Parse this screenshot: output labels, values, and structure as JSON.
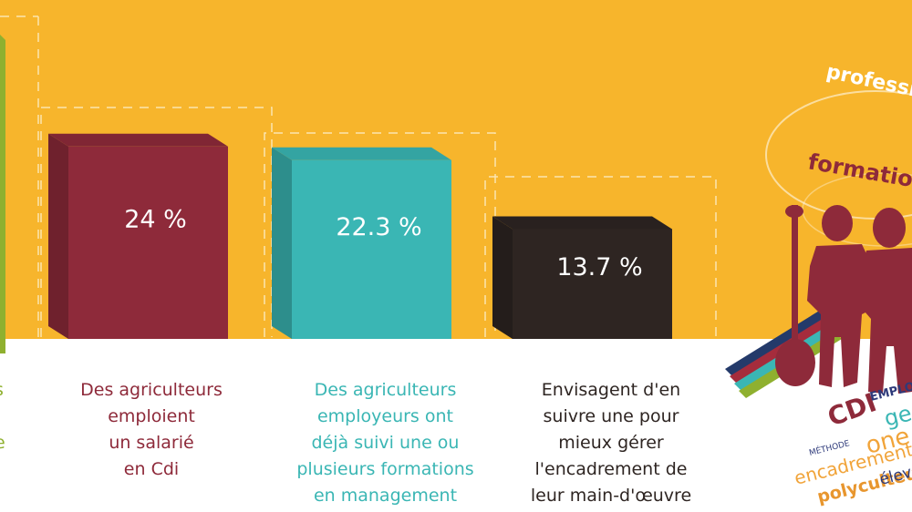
{
  "colors": {
    "background": "#f7b52c",
    "floor": "#ffffff",
    "green": "#8fb02f",
    "maroon": "#8e2a3a",
    "teal": "#3ab6b4",
    "dark": "#2e2522",
    "guide": "#fbe5b0"
  },
  "chart_data": {
    "type": "bar",
    "title": "",
    "categories": [
      "Des agriculteurs emploient un salarié en Cdi",
      "Des agriculteurs employeurs ont déjà suivi une ou plusieurs formations en management",
      "Envisagent d'en suivre une pour mieux gérer l'encadrement de leur main-d'œuvre"
    ],
    "values": [
      24,
      22.3,
      13.7
    ],
    "value_labels": [
      "24 %",
      "22.3 %",
      "13.7 %"
    ],
    "bar_colors": [
      "#8e2a3a",
      "#3ab6b4",
      "#2e2522"
    ],
    "caption_colors": [
      "#8e2a3a",
      "#3ab6b4",
      "#2e2522"
    ],
    "captions": [
      [
        "Des agriculteurs",
        "emploient",
        "un salarié",
        "en Cdi"
      ],
      [
        "Des agriculteurs",
        "employeurs ont",
        "déjà suivi une ou",
        "plusieurs formations",
        "en management"
      ],
      [
        "Envisagent d'en",
        "suivre une pour",
        "mieux gérer",
        "l'encadrement de",
        "leur main-d'œuvre"
      ]
    ],
    "partial_left_caption": [
      "s",
      "e"
    ]
  },
  "illustration": {
    "words": [
      {
        "text": "professio",
        "color": "#ffffff"
      },
      {
        "text": "formation",
        "color": "#8e2a3a"
      },
      {
        "text": "CDI",
        "color": "#8e2a3a"
      },
      {
        "text": "EMPLOYÉ",
        "color": "#2e3a7a"
      },
      {
        "text": "MÉTHODE",
        "color": "#2e3a7a"
      },
      {
        "text": "ge",
        "color": "#3ab6b4"
      },
      {
        "text": "encadrement",
        "color": "#f1a43a"
      },
      {
        "text": "one",
        "color": "#f1a43a"
      },
      {
        "text": "polyculteur",
        "color": "#e8962e"
      },
      {
        "text": "élev",
        "color": "#2e3a7a"
      }
    ]
  }
}
